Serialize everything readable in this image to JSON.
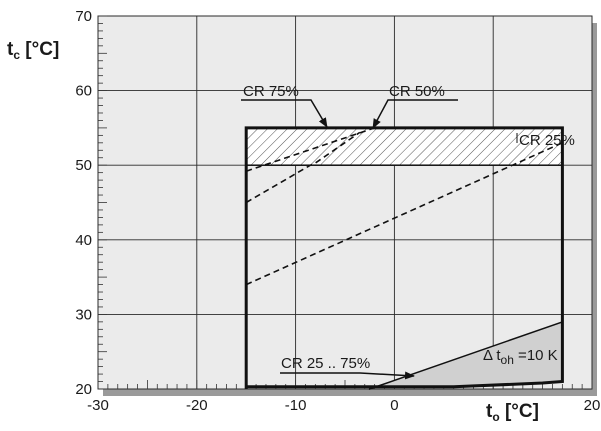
{
  "chart_data": {
    "type": "line",
    "xlabel": {
      "main": "t",
      "sub": "o",
      "unit": " [°C]"
    },
    "ylabel": {
      "main": "t",
      "sub": "c",
      "unit": " [°C]"
    },
    "xlim": [
      -30,
      20
    ],
    "ylim": [
      20,
      70
    ],
    "x_ticks": [
      -30,
      -20,
      -10,
      0,
      20
    ],
    "y_ticks": [
      20,
      30,
      40,
      50,
      60,
      70
    ],
    "grid": true,
    "colors": {
      "grid_background": "#ebebeb",
      "gridline": "#2a2a2a",
      "envelope": "#111111",
      "shaded_region": "#d0d0d0",
      "shadow": "#9a9a9a"
    },
    "envelope": [
      [
        -15,
        20
      ],
      [
        -15,
        55
      ],
      [
        17,
        55
      ],
      [
        17,
        21
      ],
      [
        15,
        20.8
      ],
      [
        6,
        20.3
      ],
      [
        -15,
        20.3
      ]
    ],
    "cr_lines": [
      {
        "label": "CR 75%",
        "points": [
          [
            -15,
            45
          ],
          [
            -8.5,
            50
          ],
          [
            -8,
            50.3
          ],
          [
            -3.5,
            54.4
          ]
        ]
      },
      {
        "label": "CR 50%",
        "points": [
          [
            -15,
            49.2
          ],
          [
            -2,
            55
          ]
        ]
      },
      {
        "label": "CR 25%",
        "points": [
          [
            -15,
            34
          ],
          [
            17,
            53
          ]
        ]
      }
    ],
    "hatched_band": {
      "x": [
        -15,
        17
      ],
      "y": [
        50,
        55
      ]
    },
    "superheat_region": {
      "points": [
        [
          -2.5,
          20
        ],
        [
          17,
          29
        ],
        [
          17,
          21
        ],
        [
          15,
          20.8
        ],
        [
          6,
          20.3
        ],
        [
          -2.5,
          20.3
        ]
      ]
    },
    "annotations": {
      "cr75": "CR 75%",
      "cr50": "CR 50%",
      "cr25": "CR 25%",
      "cr_range": "CR 25 .. 75%",
      "superheat": {
        "prefix": "Δ t",
        "sub": "oh",
        "suffix": " =10  K"
      }
    }
  }
}
